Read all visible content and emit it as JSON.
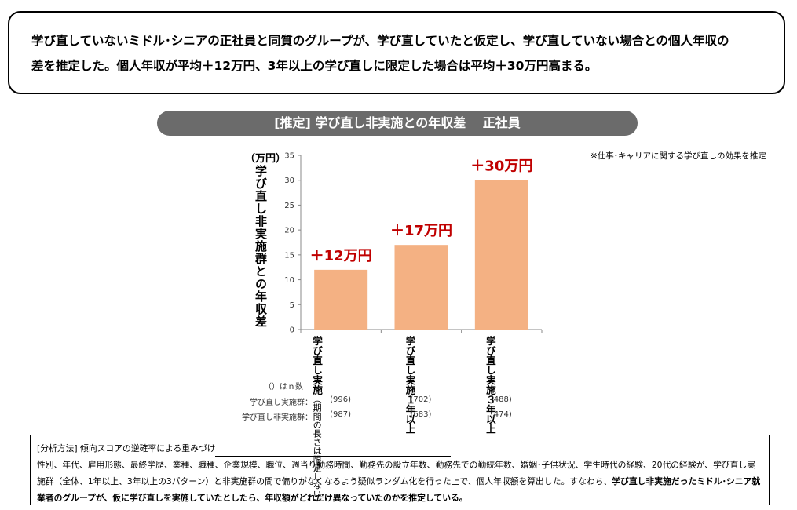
{
  "headline": {
    "line1": "学び直していないミドル･シニアの正社員と同質のグループが、学び直していたと仮定し、学び直していない場合との個人年収の",
    "line2": "差を推定した。個人年収が平均＋12万円、3年以上の学び直しに限定した場合は平均＋30万円高まる。"
  },
  "chart_data": {
    "type": "bar",
    "title": "[推定]  学び直し非実施との年収差　 正社員",
    "ylabel": "学び直し非実施群との年収差",
    "unit": "（万円）",
    "note": "※仕事･キャリアに関する学び直しの効果を推定",
    "ylim": [
      0,
      35
    ],
    "yticks": [
      0,
      5,
      10,
      15,
      20,
      25,
      30,
      35
    ],
    "categories": [
      {
        "main": "学び直し実施",
        "sub": "（期間の長さは限定しない）"
      },
      {
        "main": "学び直し実施",
        "sub": "１年以上"
      },
      {
        "main": "学び直し実施",
        "sub": "３年以上"
      }
    ],
    "values": [
      12,
      17,
      30
    ],
    "data_labels": [
      "＋12万円",
      "＋17万円",
      "＋30万円"
    ],
    "bar_color": "#f4b183",
    "label_color": "#c00000",
    "grid": false,
    "n_caption": "（）はｎ数",
    "n_rows": [
      {
        "label": "学び直し実施群：",
        "values": [
          "(996)",
          "(702)",
          "(488)"
        ]
      },
      {
        "label": "学び直し非実施群：",
        "values": [
          "(987)",
          "(683)",
          "(474)"
        ]
      }
    ]
  },
  "method": {
    "heading": "[分析方法] 傾向スコアの逆確率による重みづけ",
    "text1": "性別、年代、雇用形態、最終学歴、業種、職種、企業規模、職位、週当り勤務時間、勤務先の設立年数、勤務先での勤続年数、婚姻･子供状況、学生時代の経験、20代の経験が、学び直し実施群（全体、1年以上、3年以上の3パターン）と非実施群の間で偏りがなくなるよう疑似ランダム化を行った上で、個人年収額を算出した。すなわち、",
    "bold1": "学び直し非実施だったミドル･シニア就業者のグループが、仮に学び直しを実施していたとしたら、年収額がどれだけ異なっていたのかを推定している。"
  }
}
